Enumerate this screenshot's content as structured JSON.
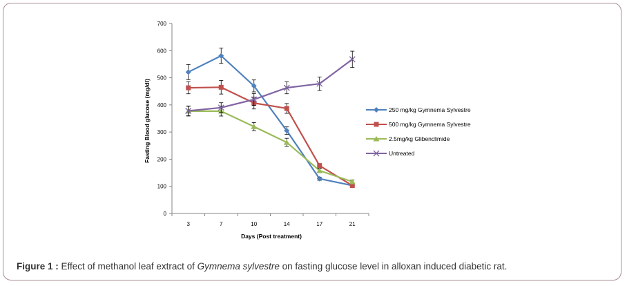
{
  "chart_data": {
    "type": "line",
    "title": "",
    "xlabel": "Days (Post treatment)",
    "ylabel": "Fasting Blood glucose (mg/dl)",
    "x": [
      3,
      7,
      10,
      14,
      17,
      21
    ],
    "ylim": [
      0,
      700
    ],
    "yticks": [
      0,
      100,
      200,
      300,
      400,
      500,
      600,
      700
    ],
    "grid": false,
    "legend_position": "right",
    "series": [
      {
        "name": "250 mg/kg Gymnema Sylvestre",
        "color": "#4f81bd",
        "marker": "diamond",
        "values": [
          521,
          581,
          470,
          305,
          128,
          103
        ],
        "errors": [
          28,
          28,
          22,
          14,
          6,
          6
        ]
      },
      {
        "name": "500 mg/kg Gymnema Sylvestre",
        "color": "#c0504d",
        "marker": "square",
        "values": [
          463,
          465,
          407,
          387,
          176,
          103
        ],
        "errors": [
          22,
          25,
          22,
          18,
          8,
          6
        ]
      },
      {
        "name": "2.5mg/kg Glibenclimide",
        "color": "#9bbb59",
        "marker": "triangle",
        "values": [
          377,
          377,
          320,
          262,
          158,
          117
        ],
        "errors": [
          18,
          18,
          15,
          15,
          8,
          6
        ]
      },
      {
        "name": "Untreated",
        "color": "#8064a2",
        "marker": "x",
        "values": [
          378,
          390,
          420,
          463,
          478,
          568
        ],
        "errors": [
          18,
          18,
          22,
          22,
          25,
          30
        ]
      }
    ]
  },
  "caption": {
    "label": "Figure 1 :",
    "text_before": " Effect of methanol leaf extract of ",
    "species": "Gymnema sylvestre",
    "text_after": " on fasting glucose level in alloxan induced diabetic rat."
  }
}
